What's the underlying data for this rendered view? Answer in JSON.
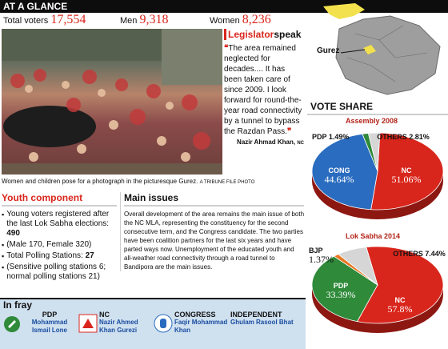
{
  "header": {
    "title": "AT A GLANCE"
  },
  "stats": {
    "total_voters_label": "Total voters",
    "total_voters": "17,554",
    "men_label": "Men",
    "men": "9,318",
    "women_label": "Women",
    "women": "8,236"
  },
  "photo": {
    "caption": "Women and children pose for a photograph in the picturesque Gurez.",
    "credit": "A TRIBUNE FILE PHOTO"
  },
  "legislator": {
    "title_a": "Legislator",
    "title_b": "speak",
    "quote": "The area remained neglected for decades.... It has been taken care of since 2009. I look forward for round-the-year road connectivity by a tunnel to bypass the Razdan Pass.",
    "name": "Nazir Ahmad Khan,",
    "party": "NC"
  },
  "map": {
    "label": "Gurez"
  },
  "vote_share": {
    "title": "VOTE SHARE"
  },
  "youth": {
    "title": "Youth component",
    "items": [
      "Young voters registered after the last Lok Sabha elections: ",
      "(Male 170, Female 320)",
      "Total Polling Stations: ",
      "(Sensitive polling stations 6; normal polling stations 21)"
    ],
    "young_voters": "490",
    "polling_stations": "27"
  },
  "issues": {
    "title": "Main issues",
    "text": "Overall development of the area remains the main issue of both the NC MLA, representing the constituency for the second consecutive term, and the Congress candidate. The two parties have been coalition partners for the last six years and have parted ways now. Unemployment of the educated youth and all-weather road connectivity through a road tunnel to Bandipora are the main issues."
  },
  "in_fray": {
    "title": "In fray",
    "candidates": [
      {
        "party": "PDP",
        "name": "Mohammad Ismail Lone",
        "icon": "pdp-pen-inkpot-icon"
      },
      {
        "party": "NC",
        "name": "Nazir Ahmed Khan Gurezi",
        "icon": "nc-plough-icon"
      },
      {
        "party": "CONGRESS",
        "name": "Faqir Mohammad Khan",
        "icon": "congress-hand-icon"
      },
      {
        "party": "INDEPENDENT",
        "name": "Ghulam Rasool Bhat",
        "icon": ""
      }
    ]
  },
  "colors": {
    "nc": "#d9261c",
    "cong": "#2a6cbf",
    "pdp": "#2f8a3a",
    "bjp": "#e87722",
    "others": "#d6d6d6"
  },
  "chart_data": [
    {
      "type": "pie",
      "title": "Assembly 2008",
      "slices": [
        {
          "label": "NC",
          "value": 51.06,
          "display": "51.06%"
        },
        {
          "label": "CONG",
          "value": 44.64,
          "display": "44.64%"
        },
        {
          "label": "PDP",
          "value": 1.49,
          "display": "1.49%"
        },
        {
          "label": "OTHERS",
          "value": 2.81,
          "display": "2.81%"
        }
      ]
    },
    {
      "type": "pie",
      "title": "Lok Sabha 2014",
      "slices": [
        {
          "label": "NC",
          "value": 57.8,
          "display": "57.8%"
        },
        {
          "label": "PDP",
          "value": 33.39,
          "display": "33.39%"
        },
        {
          "label": "BJP",
          "value": 1.37,
          "display": "1.37%"
        },
        {
          "label": "OTHERS",
          "value": 7.44,
          "display": "7.44%"
        }
      ]
    }
  ]
}
